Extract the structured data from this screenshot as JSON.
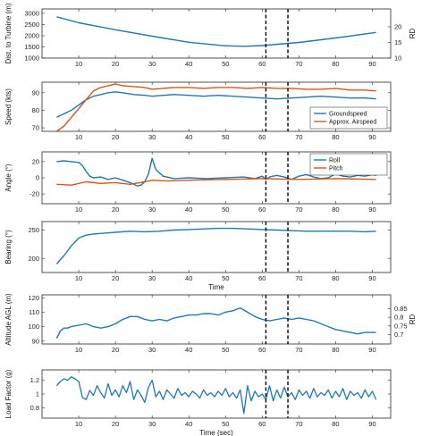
{
  "chart_data": [
    {
      "type": "line",
      "ylabel": "Dist. to Turbine (m)",
      "ylabel_right": "RD",
      "xlim": [
        0,
        95
      ],
      "xticks": [
        10,
        20,
        30,
        40,
        50,
        60,
        70,
        80,
        90
      ],
      "xlabel": "",
      "ylim": [
        1000,
        3200
      ],
      "yticks": [
        1000,
        1500,
        2000,
        2500,
        3000
      ],
      "yticks_right": [
        10,
        15,
        20
      ],
      "yticks_right_values": [
        1000,
        1700,
        2400
      ],
      "vlines": [
        61,
        67
      ],
      "legend": null,
      "series": [
        {
          "name": "",
          "color": "#1f77b4",
          "x": [
            4,
            10,
            20,
            30,
            40,
            50,
            55,
            60,
            70,
            80,
            91
          ],
          "y": [
            2850,
            2580,
            2270,
            1980,
            1710,
            1550,
            1530,
            1560,
            1700,
            1900,
            2150
          ]
        }
      ]
    },
    {
      "type": "line",
      "ylabel": "Speed (kts)",
      "xlim": [
        0,
        95
      ],
      "xticks": [
        10,
        20,
        30,
        40,
        50,
        60,
        70,
        80,
        90
      ],
      "xlabel": "",
      "ylim": [
        68,
        96
      ],
      "yticks": [
        70,
        80,
        90
      ],
      "vlines": [
        61,
        67
      ],
      "legend": {
        "position": "bottom-right",
        "entries": [
          "Groundspeed",
          "Approx. Airspeed"
        ]
      },
      "series": [
        {
          "name": "Groundspeed",
          "color": "#1f77b4",
          "x": [
            4,
            6,
            8,
            10,
            12,
            14,
            16,
            18,
            20,
            22,
            25,
            28,
            30,
            33,
            36,
            40,
            44,
            48,
            52,
            56,
            60,
            64,
            68,
            72,
            76,
            80,
            84,
            88,
            91
          ],
          "y": [
            76,
            78,
            80,
            83,
            86,
            88,
            89,
            90,
            90.5,
            90,
            89,
            88.5,
            88,
            88.5,
            89,
            88.5,
            88,
            88.5,
            88,
            87.5,
            87,
            86.5,
            87,
            87.5,
            88,
            87.5,
            87,
            87,
            86.5
          ]
        },
        {
          "name": "Approx. Airspeed",
          "color": "#d95319",
          "x": [
            4,
            6,
            8,
            10,
            12,
            14,
            16,
            18,
            20,
            22,
            25,
            28,
            30,
            33,
            36,
            40,
            44,
            48,
            52,
            56,
            60,
            64,
            68,
            72,
            76,
            80,
            84,
            88,
            91
          ],
          "y": [
            66,
            71,
            76,
            81,
            86,
            91,
            93,
            94,
            95,
            94,
            93.5,
            93,
            92,
            92.5,
            93,
            93,
            92.5,
            93,
            93,
            92.5,
            93,
            92.5,
            92.5,
            92,
            92,
            92.5,
            91.5,
            91.5,
            91
          ]
        }
      ]
    },
    {
      "type": "line",
      "ylabel": "Angle (°)",
      "xlim": [
        0,
        95
      ],
      "xticks": [
        10,
        20,
        30,
        40,
        50,
        60,
        70,
        80,
        90
      ],
      "xlabel": "",
      "ylim": [
        -32,
        32
      ],
      "yticks": [
        -20,
        0,
        20
      ],
      "vlines": [
        61,
        67
      ],
      "legend": {
        "position": "top-right",
        "entries": [
          "Roll",
          "Pitch"
        ]
      },
      "series": [
        {
          "name": "Roll",
          "color": "#1f77b4",
          "x": [
            4,
            6,
            8,
            10,
            11,
            12,
            13,
            14,
            16,
            18,
            20,
            22,
            24,
            26,
            27,
            28,
            29,
            30,
            31,
            33,
            36,
            40,
            45,
            50,
            55,
            58,
            60,
            61,
            62,
            64,
            66,
            68,
            70,
            72,
            74,
            76,
            78,
            80,
            82,
            84,
            86,
            88,
            90,
            91
          ],
          "y": [
            20,
            21,
            20,
            19,
            15,
            8,
            2,
            0,
            1,
            -2,
            0,
            -3,
            -6,
            -10,
            -9,
            -5,
            5,
            24,
            10,
            2,
            -1,
            0,
            -1,
            0,
            1,
            -1,
            2,
            -2,
            1,
            3,
            1,
            -2,
            2,
            4,
            1,
            -1,
            0,
            5,
            2,
            1,
            3,
            2,
            4,
            3
          ]
        },
        {
          "name": "Pitch",
          "color": "#d95319",
          "x": [
            4,
            8,
            12,
            16,
            20,
            24,
            28,
            30,
            34,
            40,
            50,
            60,
            70,
            80,
            91
          ],
          "y": [
            -8,
            -9,
            -5,
            -7,
            -6,
            -8,
            -5,
            -3,
            -4,
            -3,
            -2,
            -1,
            -2,
            -1,
            -2
          ]
        }
      ]
    },
    {
      "type": "line",
      "ylabel": "Bearing (°)",
      "xlim": [
        0,
        95
      ],
      "xticks": [
        10,
        20,
        30,
        40,
        50,
        60,
        70,
        80,
        90
      ],
      "xlabel": "Time",
      "ylim": [
        175,
        265
      ],
      "yticks": [
        200,
        250
      ],
      "vlines": [
        61,
        67
      ],
      "legend": null,
      "series": [
        {
          "name": "",
          "color": "#1f77b4",
          "x": [
            4,
            6,
            8,
            10,
            12,
            14,
            16,
            20,
            24,
            28,
            32,
            36,
            40,
            44,
            48,
            52,
            56,
            60,
            64,
            68,
            72,
            76,
            80,
            84,
            88,
            91
          ],
          "y": [
            190,
            205,
            222,
            236,
            241,
            243,
            244,
            246,
            248,
            247,
            248,
            250,
            251,
            252,
            253,
            253,
            252,
            251,
            250,
            249,
            248,
            248,
            248,
            248,
            247,
            248
          ]
        }
      ]
    },
    {
      "type": "line",
      "ylabel": "Altitude AGL (m)",
      "ylabel_right": "RD",
      "xlim": [
        0,
        95
      ],
      "xticks": [
        10,
        20,
        30,
        40,
        50,
        60,
        70,
        80,
        90
      ],
      "xlabel": "",
      "ylim": [
        88,
        122
      ],
      "yticks": [
        90,
        100,
        110,
        120
      ],
      "yticks_right": [
        0.7,
        0.75,
        0.8,
        0.85
      ],
      "yticks_right_values": [
        94.5,
        100.5,
        106.5,
        112.5
      ],
      "vlines": [
        61,
        67
      ],
      "legend": null,
      "series": [
        {
          "name": "",
          "color": "#1f77b4",
          "x": [
            4,
            5,
            6,
            7,
            8,
            10,
            12,
            14,
            16,
            18,
            20,
            22,
            24,
            26,
            28,
            30,
            32,
            34,
            36,
            38,
            40,
            42,
            44,
            46,
            48,
            50,
            52,
            54,
            56,
            58,
            60,
            62,
            64,
            66,
            68,
            70,
            72,
            74,
            76,
            78,
            80,
            82,
            84,
            86,
            88,
            90,
            91
          ],
          "y": [
            92,
            97,
            99,
            99,
            100,
            101,
            102,
            100,
            99,
            100,
            102,
            105,
            107,
            107,
            105,
            104,
            105,
            104,
            106,
            107,
            108,
            108,
            109,
            109,
            108,
            110,
            111,
            113,
            110,
            107,
            105,
            104,
            105,
            106,
            105,
            106,
            105,
            104,
            102,
            100,
            98,
            97,
            96,
            95,
            96,
            96,
            96
          ]
        }
      ]
    },
    {
      "type": "line",
      "ylabel": "Load Factor (g)",
      "xlim": [
        0,
        95
      ],
      "xticks": [
        10,
        20,
        30,
        40,
        50,
        60,
        70,
        80,
        90
      ],
      "xlabel": "Time (sec)",
      "ylim": [
        0.65,
        1.35
      ],
      "yticks": [
        0.8,
        1,
        1.2
      ],
      "vlines": [
        61,
        67
      ],
      "legend": null,
      "series": [
        {
          "name": "",
          "color": "#1f77b4",
          "x": [
            4,
            5,
            6,
            7,
            8,
            9,
            10,
            11,
            12,
            13,
            14,
            15,
            16,
            17,
            18,
            19,
            20,
            21,
            22,
            23,
            24,
            25,
            26,
            27,
            28,
            29,
            30,
            31,
            32,
            33,
            34,
            35,
            36,
            37,
            38,
            39,
            40,
            41,
            42,
            43,
            44,
            45,
            46,
            47,
            48,
            49,
            50,
            51,
            52,
            53,
            54,
            55,
            56,
            57,
            58,
            59,
            60,
            61,
            62,
            63,
            64,
            65,
            66,
            67,
            68,
            69,
            70,
            71,
            72,
            73,
            74,
            75,
            76,
            77,
            78,
            79,
            80,
            81,
            82,
            83,
            84,
            85,
            86,
            87,
            88,
            89,
            90,
            91
          ],
          "y": [
            1.12,
            1.18,
            1.22,
            1.2,
            1.25,
            1.22,
            1.18,
            0.95,
            0.92,
            1.05,
            0.98,
            1.12,
            1.02,
            0.94,
            1.15,
            0.98,
            1.06,
            0.96,
            1.12,
            1.02,
            1.18,
            0.92,
            1.06,
            0.98,
            0.88,
            1.1,
            1.2,
            0.96,
            1.04,
            0.92,
            1.06,
            1.0,
            0.94,
            1.08,
            0.98,
            1.02,
            0.96,
            1.04,
            1.0,
            0.94,
            1.06,
            0.98,
            1.02,
            0.96,
            1.04,
            0.98,
            1.08,
            0.96,
            1.02,
            0.94,
            1.06,
            0.72,
            1.12,
            0.9,
            1.04,
            0.96,
            1.0,
            0.92,
            1.12,
            0.9,
            1.06,
            0.94,
            1.1,
            0.96,
            1.02,
            0.92,
            1.06,
            0.98,
            1.04,
            0.94,
            1.08,
            0.96,
            1.02,
            0.98,
            1.06,
            0.94,
            1.04,
            0.96,
            1.08,
            0.92,
            1.04,
            0.98,
            1.02,
            0.94,
            1.06,
            0.96,
            1.04,
            0.92
          ]
        }
      ]
    }
  ]
}
